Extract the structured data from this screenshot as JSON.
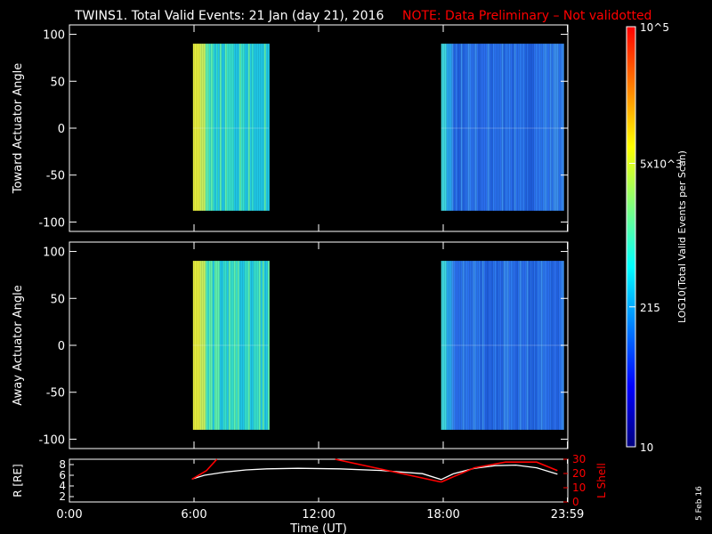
{
  "header": {
    "title": "TWINS1. Total Valid Events: 21 Jan (day  21), 2016",
    "note": "NOTE: Data Preliminary – Not validotted",
    "note_color": "#ff0000"
  },
  "side_date": "5 Feb 16",
  "colorbar": {
    "label": "LOG10(Total Valid Events per Scan)",
    "ticks": [
      "10",
      "215",
      "5x10^3",
      "10^5"
    ],
    "tick_values": [
      10,
      215,
      5000,
      100000
    ],
    "range": [
      10,
      100000
    ],
    "scale": "log",
    "colors": [
      "#00007f",
      "#0000ff",
      "#007fff",
      "#00ffff",
      "#7fff7f",
      "#ffff00",
      "#ff7f00",
      "#ff0000"
    ]
  },
  "chart_data": [
    {
      "type": "heatmap",
      "ylabel": "Toward Actuator Angle",
      "ylim": [
        -110,
        110
      ],
      "yticks": [
        100,
        50,
        0,
        -50,
        -100
      ],
      "data_coverage": [
        {
          "x": [
            5.95,
            9.6
          ],
          "y": [
            -88,
            90
          ]
        },
        {
          "x": [
            17.9,
            23.75
          ],
          "y": [
            -88,
            90
          ]
        }
      ]
    },
    {
      "type": "heatmap",
      "ylabel": "Away Actuator Angle",
      "ylim": [
        -110,
        110
      ],
      "yticks": [
        100,
        50,
        0,
        -50,
        -100
      ],
      "data_coverage": [
        {
          "x": [
            5.95,
            9.6
          ],
          "y": [
            -90,
            90
          ]
        },
        {
          "x": [
            17.9,
            23.75
          ],
          "y": [
            -90,
            90
          ]
        }
      ]
    },
    {
      "type": "line",
      "ylabel": "R [RE]",
      "ylim": [
        1,
        9
      ],
      "yticks": [
        "8",
        "6",
        "4",
        "2"
      ],
      "right_ylabel": "L Shell",
      "right_ylim": [
        0,
        30
      ],
      "right_yticks": [
        "30",
        "20",
        "10",
        "0"
      ],
      "right_color": "#ff0000",
      "xlabel": "Time (UT)",
      "xlim": [
        0,
        24
      ],
      "xticks": [
        "0:00",
        "6:00",
        "12:00",
        "18:00",
        "23:59"
      ],
      "xtick_values": [
        0,
        6,
        12,
        18,
        23.98
      ],
      "series": [
        {
          "name": "R",
          "color": "#ffffff",
          "axis": "left",
          "x": [
            5.9,
            6.5,
            7.5,
            8.5,
            9.5,
            11,
            13,
            15,
            17,
            17.9,
            18.5,
            19.5,
            20.5,
            21.5,
            22.5,
            23.5
          ],
          "y": [
            5.3,
            6.0,
            6.6,
            7.0,
            7.2,
            7.3,
            7.2,
            6.9,
            6.3,
            5.2,
            6.3,
            7.3,
            7.8,
            7.9,
            7.4,
            6.2
          ]
        },
        {
          "name": "L Shell",
          "color": "#ff0000",
          "axis": "right",
          "segments": [
            {
              "x": [
                5.9,
                6.6,
                7.1
              ],
              "y": [
                16,
                22,
                30
              ]
            },
            {
              "x": [
                12.8,
                17.9
              ],
              "y": [
                30,
                14
              ]
            },
            {
              "x": [
                17.9,
                19.5,
                21,
                22.5,
                23.5
              ],
              "y": [
                14,
                24,
                28,
                28,
                22
              ]
            }
          ]
        }
      ]
    }
  ]
}
